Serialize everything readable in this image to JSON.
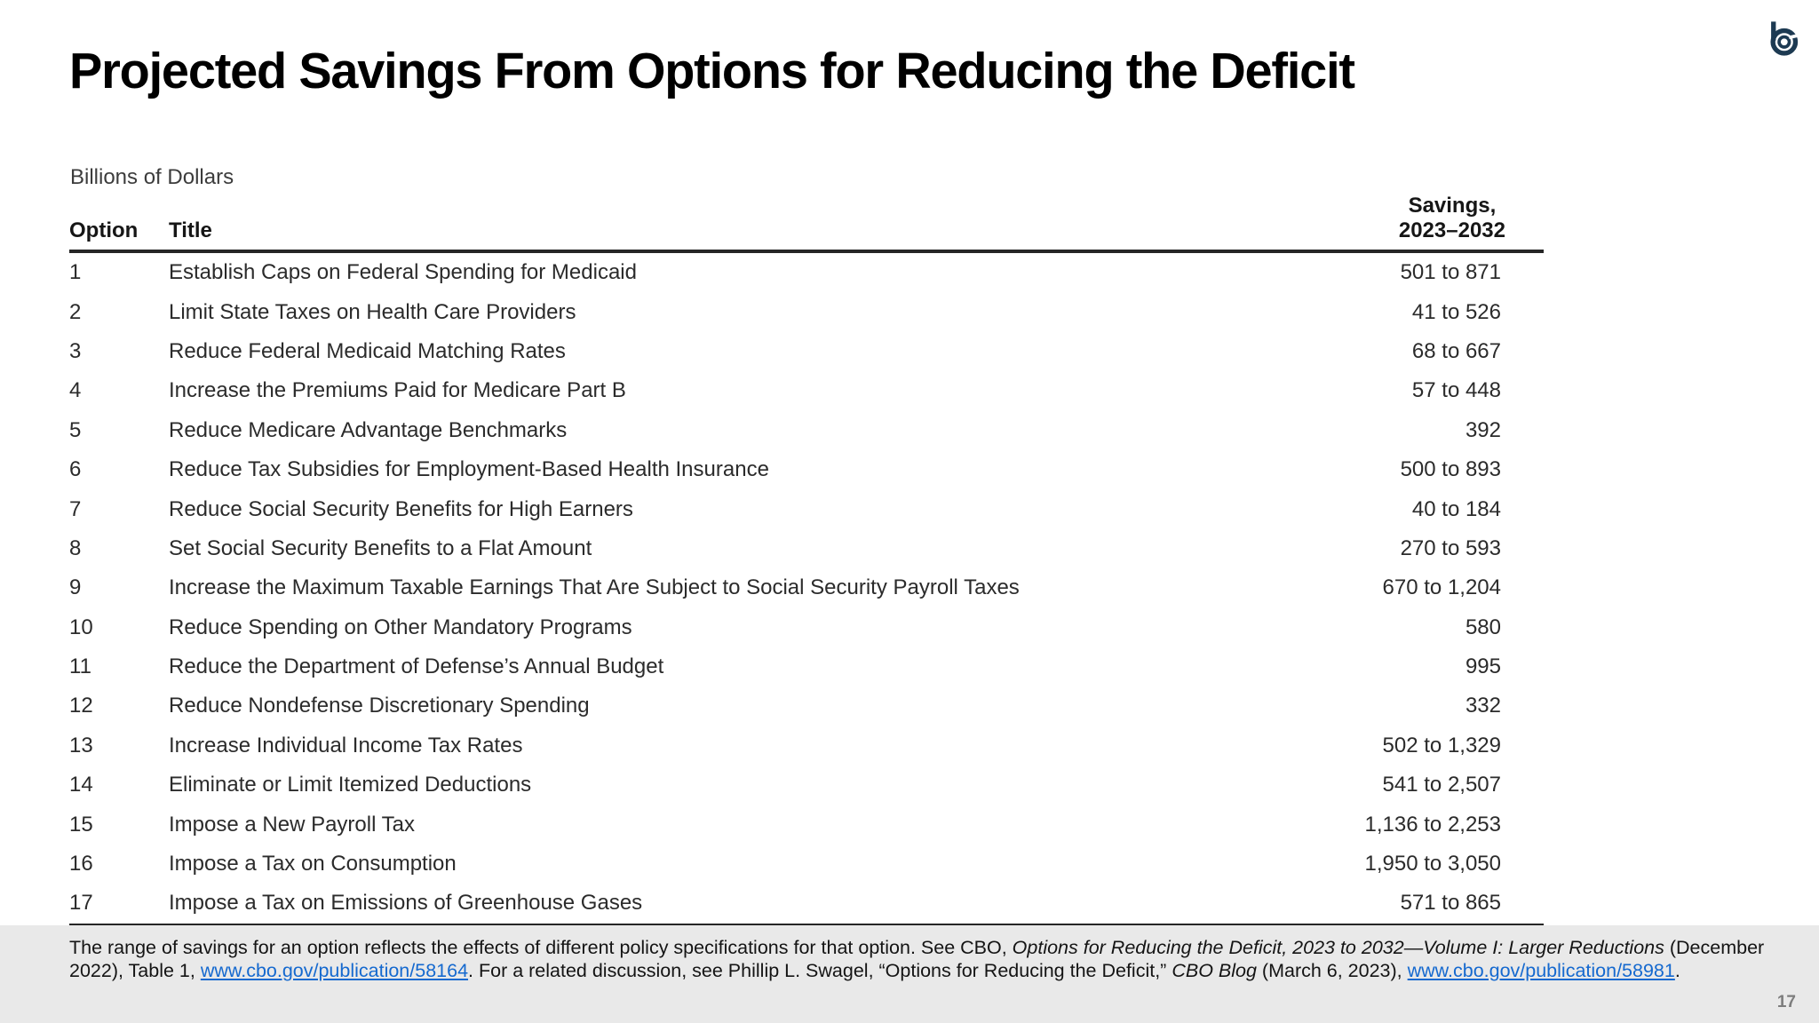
{
  "slide": {
    "title": "Projected Savings From Options for Reducing the Deficit"
  },
  "logo": {
    "name": "cbo-logo",
    "color": "#1d3a52"
  },
  "table": {
    "unit_label": "Billions of Dollars",
    "columns": {
      "option": "Option",
      "title": "Title",
      "savings_line1": "Savings,",
      "savings_line2": "2023–2032"
    },
    "rows": [
      {
        "option": "1",
        "title": "Establish Caps on Federal Spending for Medicaid",
        "savings": "501 to 871"
      },
      {
        "option": "2",
        "title": "Limit State Taxes on Health Care Providers",
        "savings": "41 to 526"
      },
      {
        "option": "3",
        "title": "Reduce Federal Medicaid Matching Rates",
        "savings": "68 to 667"
      },
      {
        "option": "4",
        "title": "Increase the Premiums Paid for Medicare Part B",
        "savings": "57 to 448"
      },
      {
        "option": "5",
        "title": "Reduce Medicare Advantage Benchmarks",
        "savings": "392"
      },
      {
        "option": "6",
        "title": "Reduce Tax Subsidies for Employment-Based Health Insurance",
        "savings": "500 to 893"
      },
      {
        "option": "7",
        "title": "Reduce Social Security Benefits for High Earners",
        "savings": "40 to 184"
      },
      {
        "option": "8",
        "title": "Set Social Security Benefits to a Flat Amount",
        "savings": "270 to 593"
      },
      {
        "option": "9",
        "title": "Increase the Maximum Taxable Earnings That Are Subject to Social Security Payroll Taxes",
        "savings": "670 to 1,204"
      },
      {
        "option": "10",
        "title": "Reduce Spending on Other Mandatory Programs",
        "savings": "580"
      },
      {
        "option": "11",
        "title": "Reduce the Department of Defense’s Annual Budget",
        "savings": "995"
      },
      {
        "option": "12",
        "title": "Reduce Nondefense Discretionary Spending",
        "savings": "332"
      },
      {
        "option": "13",
        "title": "Increase Individual Income Tax Rates",
        "savings": "502 to 1,329"
      },
      {
        "option": "14",
        "title": "Eliminate or Limit Itemized Deductions",
        "savings": "541 to 2,507"
      },
      {
        "option": "15",
        "title": "Impose a New Payroll Tax",
        "savings": "1,136 to 2,253"
      },
      {
        "option": "16",
        "title": "Impose a Tax on Consumption",
        "savings": "1,950 to 3,050"
      },
      {
        "option": "17",
        "title": "Impose a Tax on Emissions of Greenhouse Gases",
        "savings": "571 to 865"
      }
    ]
  },
  "footer": {
    "page_number": "17",
    "note_segments": [
      {
        "text": "The range of savings for an option reflects the effects of different policy specifications for that option. See CBO, ",
        "style": "normal"
      },
      {
        "text": "Options for Reducing the Deficit, 2023 to 2032—Volume I: Larger Reductions",
        "style": "italic"
      },
      {
        "text": " (December 2022), Table 1, ",
        "style": "normal"
      },
      {
        "text": "www.cbo.gov/publication/58164",
        "style": "link"
      },
      {
        "text": ". For a related discussion, see Phillip L. Swagel, “Options for Reducing the Deficit,” ",
        "style": "normal"
      },
      {
        "text": "CBO Blog",
        "style": "italic"
      },
      {
        "text": " (March 6, 2023), ",
        "style": "normal"
      },
      {
        "text": "www.cbo.gov/publication/58981",
        "style": "link"
      },
      {
        "text": ".",
        "style": "normal"
      }
    ]
  },
  "colors": {
    "text": "#262626",
    "rule": "#262626",
    "link": "#1569cf",
    "footer_band": "#e9e9e9",
    "page_number": "#7d7d7d",
    "logo_navy": "#1d3a52"
  }
}
